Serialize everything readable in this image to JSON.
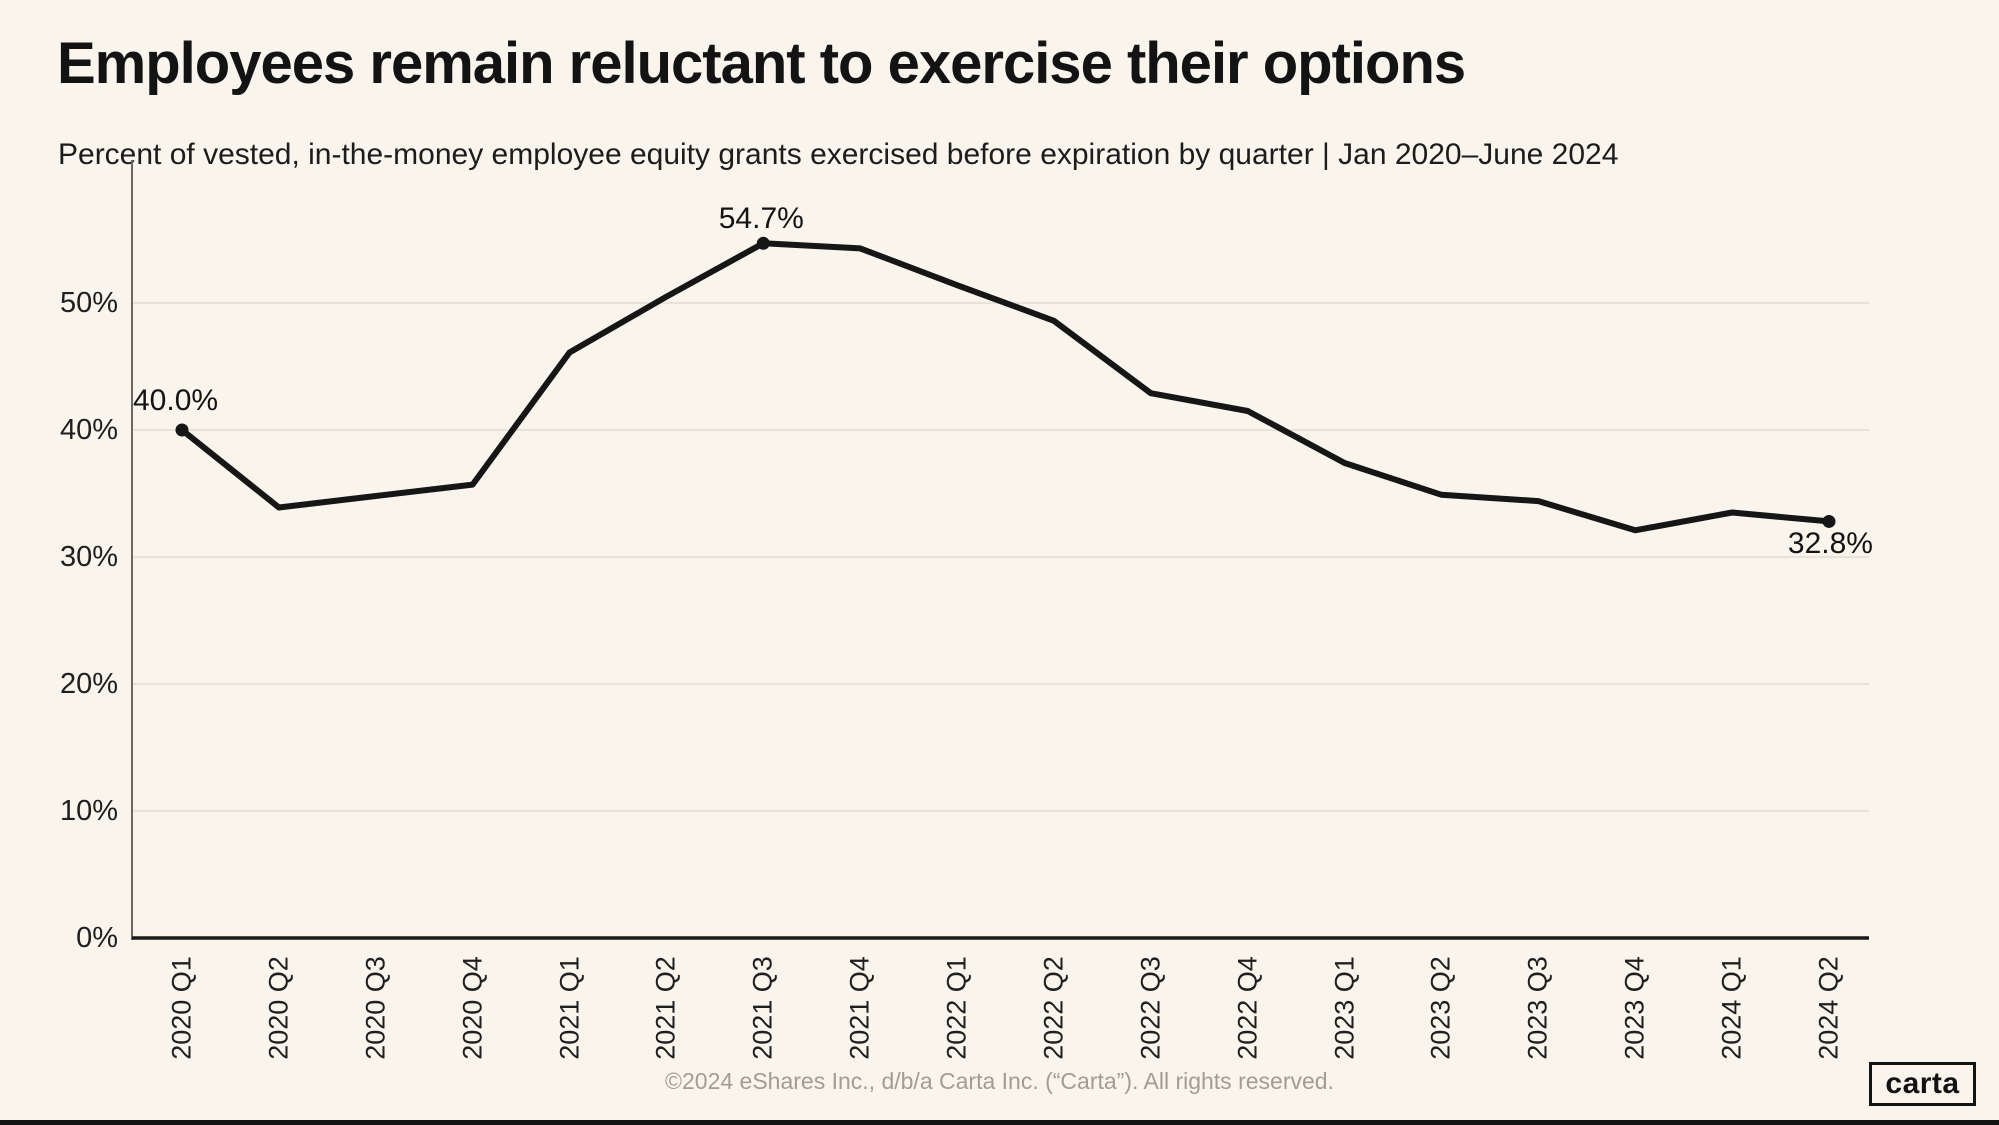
{
  "title": "Employees remain reluctant to exercise their options",
  "subtitle": "Percent of vested, in-the-money employee equity grants exercised before expiration by quarter | Jan 2020–June 2024",
  "footer": "©2024 eShares Inc., d/b/a Carta Inc. (“Carta”). All rights reserved.",
  "logo": {
    "text": "carta"
  },
  "colors": {
    "background": "#f9f4ec",
    "line": "#161616",
    "grid": "#e7e3db",
    "y_axis": "#6b6761",
    "x_axis": "#1a1a1a",
    "text": "#131313",
    "muted_text": "#a29c93"
  },
  "chart_data": {
    "type": "line",
    "categories": [
      "2020 Q1",
      "2020 Q2",
      "2020 Q3",
      "2020 Q4",
      "2021 Q1",
      "2021 Q2",
      "2021 Q3",
      "2021 Q4",
      "2022 Q1",
      "2022 Q2",
      "2022 Q3",
      "2022 Q4",
      "2023 Q1",
      "2023 Q2",
      "2023 Q3",
      "2023 Q4",
      "2024 Q1",
      "2024 Q2"
    ],
    "values": [
      40.0,
      33.9,
      34.8,
      35.7,
      46.1,
      50.5,
      54.7,
      54.3,
      51.4,
      48.6,
      42.9,
      41.5,
      37.4,
      34.9,
      34.4,
      32.1,
      33.5,
      32.8
    ],
    "title": "Employees remain reluctant to exercise their options",
    "xlabel": "",
    "ylabel": "",
    "ylim": [
      0,
      57
    ],
    "yticks": [
      0,
      10,
      20,
      30,
      40,
      50
    ],
    "ytick_suffix": "%",
    "grid": "horizontal",
    "legend": "none",
    "marked_points": [
      {
        "index": 0,
        "label": "40.0%",
        "placement": "above-left"
      },
      {
        "index": 6,
        "label": "54.7%",
        "placement": "above-center"
      },
      {
        "index": 17,
        "label": "32.8%",
        "placement": "below-right"
      }
    ]
  }
}
